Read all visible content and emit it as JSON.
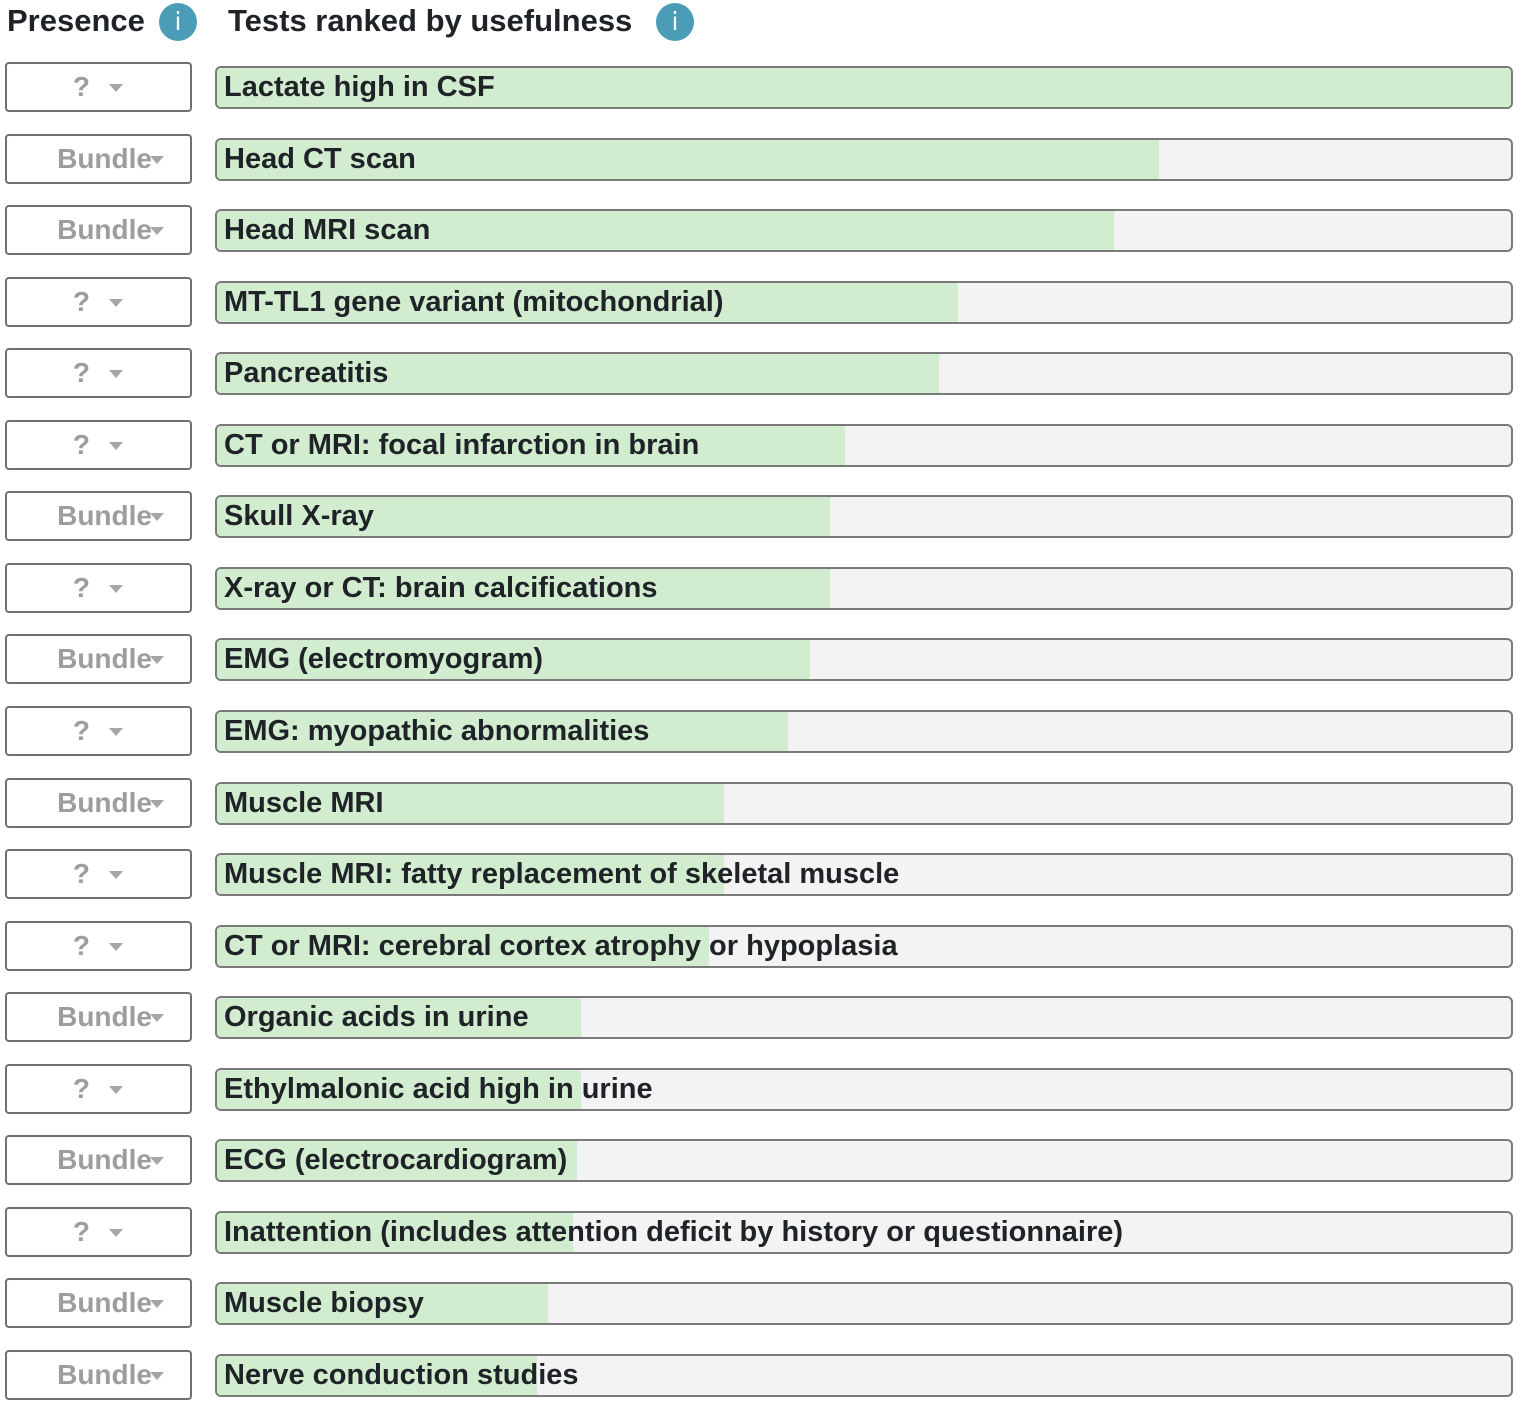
{
  "header": {
    "presence_title": "Presence",
    "tests_title": "Tests ranked by usefulness",
    "info_glyph": "i"
  },
  "rows": [
    {
      "presence": "?",
      "test": "Lactate high in CSF",
      "usefulness": 1.0
    },
    {
      "presence": "Bundle",
      "test": "Head CT scan",
      "usefulness": 0.728
    },
    {
      "presence": "Bundle",
      "test": "Head MRI scan",
      "usefulness": 0.693
    },
    {
      "presence": "?",
      "test": "MT-TL1 gene variant (mitochondrial)",
      "usefulness": 0.573
    },
    {
      "presence": "?",
      "test": "Pancreatitis",
      "usefulness": 0.558
    },
    {
      "presence": "?",
      "test": "CT or MRI: focal infarction in brain",
      "usefulness": 0.485
    },
    {
      "presence": "Bundle",
      "test": "Skull X-ray",
      "usefulness": 0.474
    },
    {
      "presence": "?",
      "test": "X-ray or CT: brain calcifications",
      "usefulness": 0.474
    },
    {
      "presence": "Bundle",
      "test": "EMG (electromyogram)",
      "usefulness": 0.458
    },
    {
      "presence": "?",
      "test": "EMG: myopathic abnormalities",
      "usefulness": 0.441
    },
    {
      "presence": "Bundle",
      "test": "Muscle MRI",
      "usefulness": 0.392
    },
    {
      "presence": "?",
      "test": "Muscle MRI: fatty replacement of skeletal muscle",
      "usefulness": 0.392
    },
    {
      "presence": "?",
      "test": "CT or MRI: cerebral cortex atrophy or hypoplasia",
      "usefulness": 0.38
    },
    {
      "presence": "Bundle",
      "test": "Organic acids in urine",
      "usefulness": 0.281
    },
    {
      "presence": "?",
      "test": "Ethylmalonic acid high in urine",
      "usefulness": 0.281
    },
    {
      "presence": "Bundle",
      "test": "ECG (electrocardiogram)",
      "usefulness": 0.278
    },
    {
      "presence": "?",
      "test": "Inattention (includes attention deficit by history or questionnaire)",
      "usefulness": 0.275
    },
    {
      "presence": "Bundle",
      "test": "Muscle biopsy",
      "usefulness": 0.256
    },
    {
      "presence": "Bundle",
      "test": "Nerve conduction studies",
      "usefulness": 0.247
    }
  ],
  "colors": {
    "bar_fill": "#d1ecce",
    "bar_track": "#f3f3f3",
    "info_icon": "#4b9cb6",
    "selector_text": "#9d9d9d"
  }
}
